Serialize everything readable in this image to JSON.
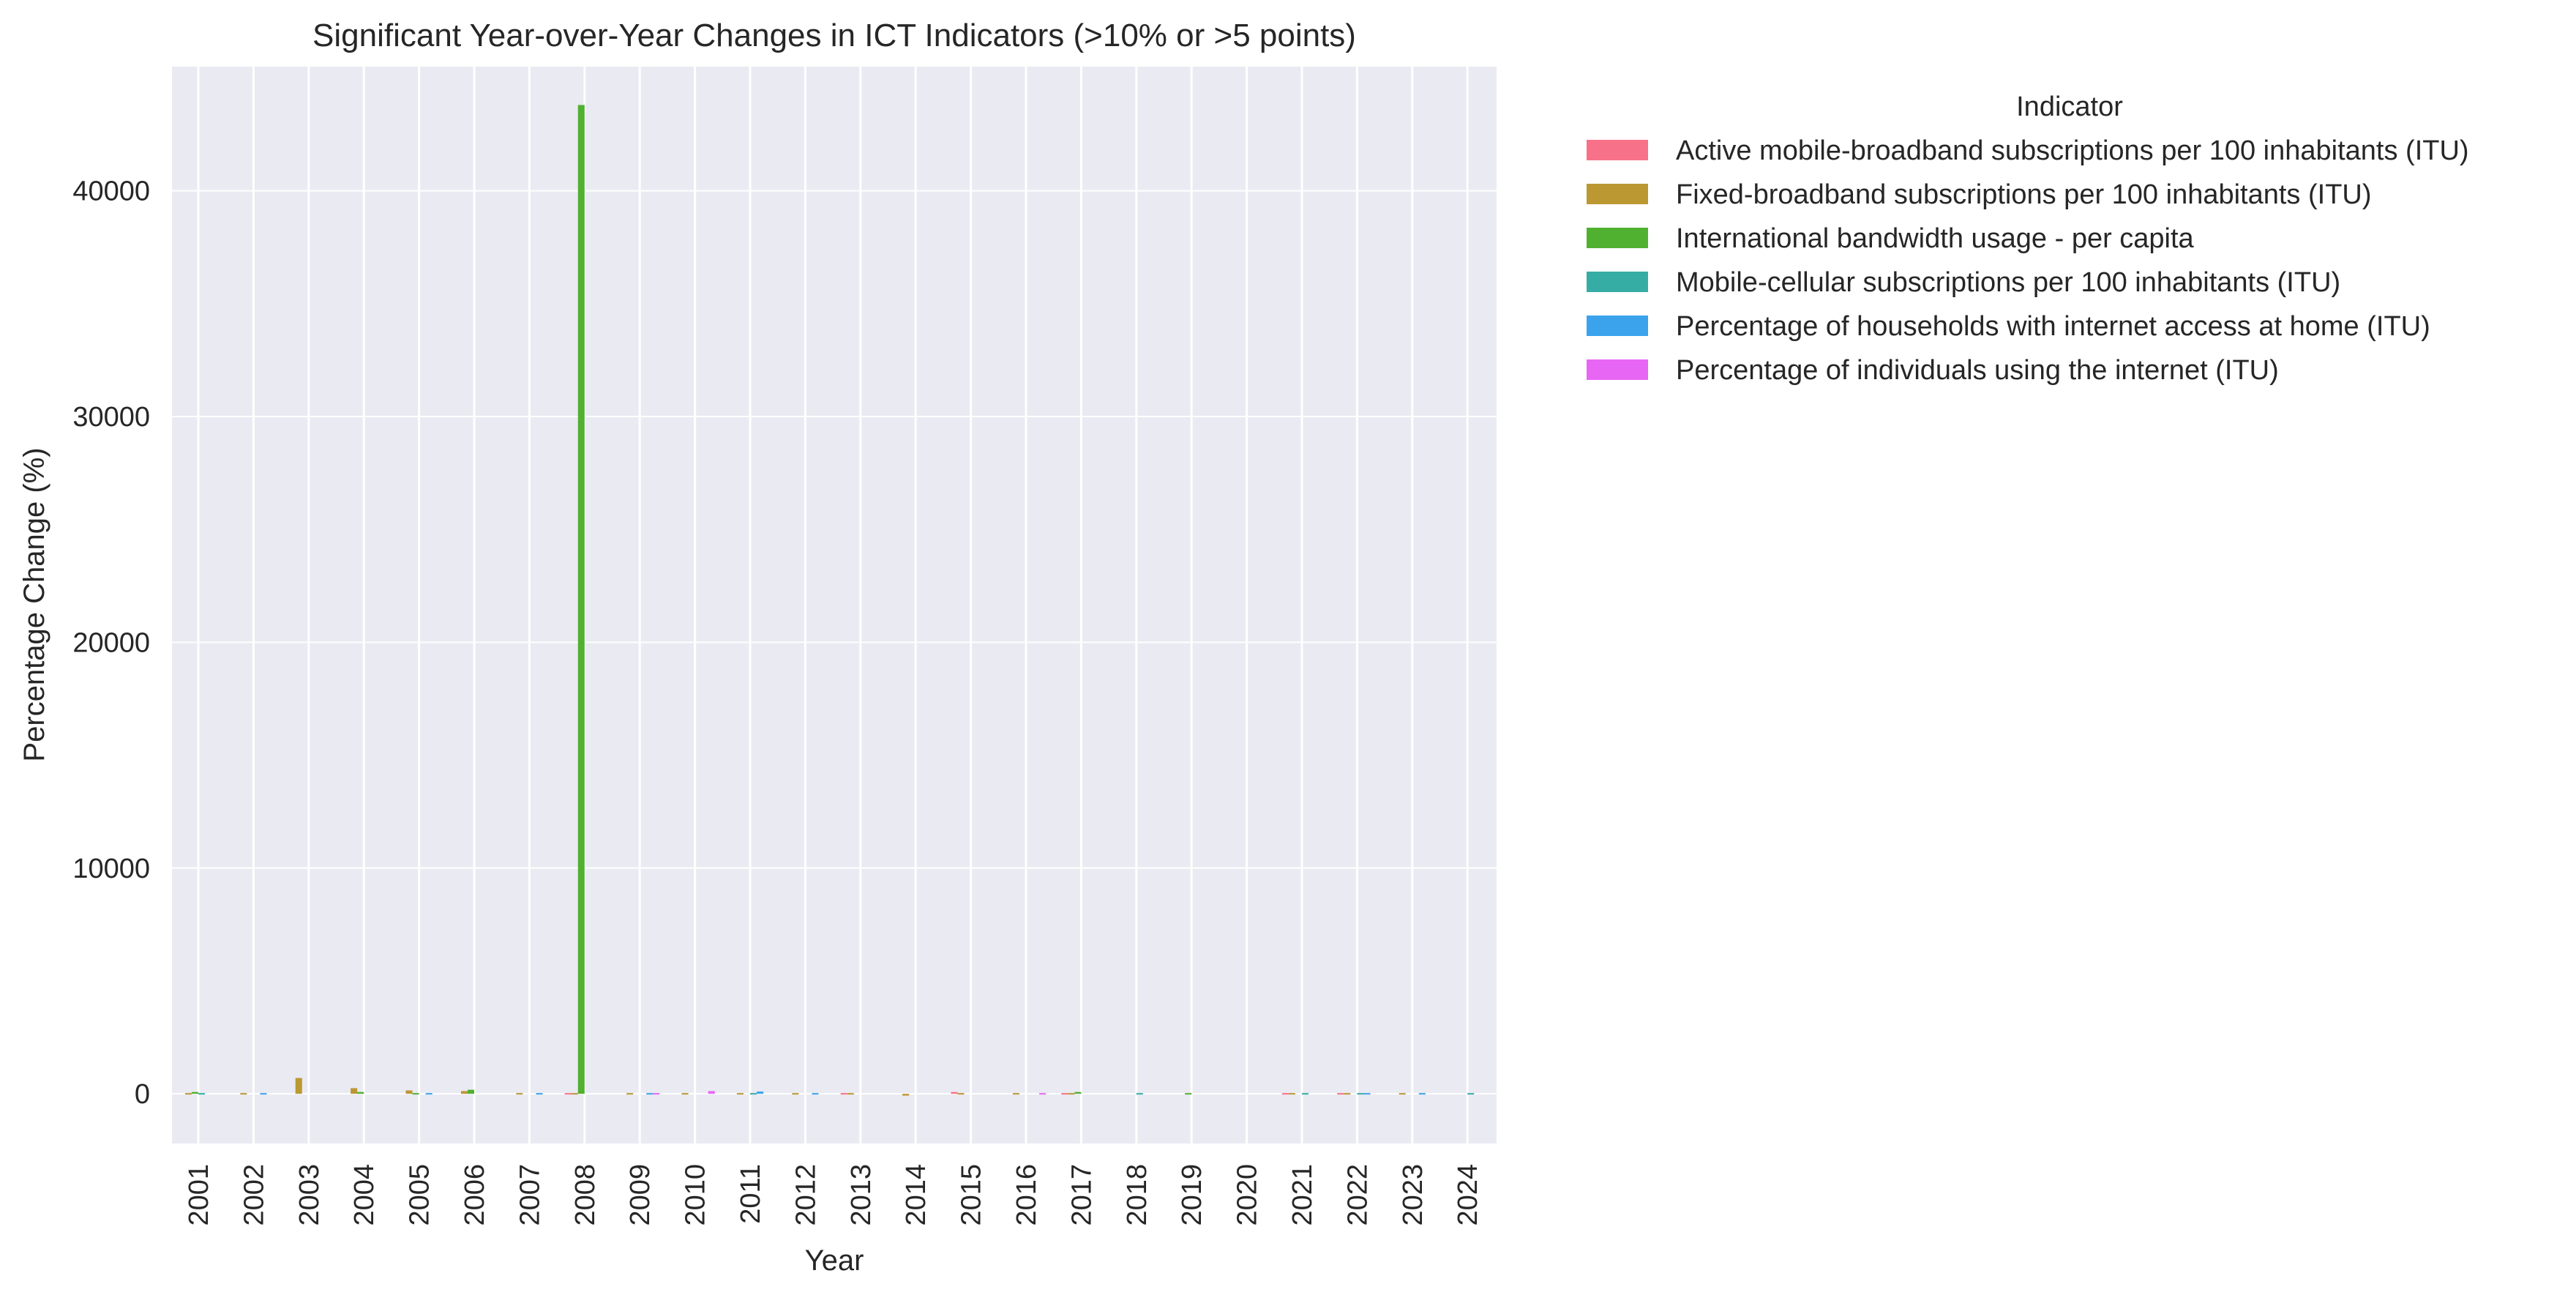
{
  "chart_data": {
    "type": "bar",
    "title": "Significant Year-over-Year Changes in ICT Indicators (>10% or >5 points)",
    "xlabel": "Year",
    "ylabel": "Percentage Change (%)",
    "ylim": [
      -2200,
      45500
    ],
    "yticks": [
      0,
      10000,
      20000,
      30000,
      40000
    ],
    "grid": true,
    "legend_title": "Indicator",
    "legend_position": "outside-right",
    "categories": [
      "2001",
      "2002",
      "2003",
      "2004",
      "2005",
      "2006",
      "2007",
      "2008",
      "2009",
      "2010",
      "2011",
      "2012",
      "2013",
      "2014",
      "2015",
      "2016",
      "2017",
      "2018",
      "2019",
      "2020",
      "2021",
      "2022",
      "2023",
      "2024"
    ],
    "series": [
      {
        "name": "Active mobile-broadband subscriptions per 100 inhabitants (ITU)",
        "color": "#f77189",
        "values": [
          null,
          null,
          null,
          null,
          null,
          null,
          null,
          25,
          null,
          null,
          null,
          null,
          20,
          null,
          80,
          null,
          15,
          null,
          null,
          null,
          30,
          15,
          null,
          null
        ]
      },
      {
        "name": "Fixed-broadband subscriptions per 100 inhabitants (ITU)",
        "color": "#bb9832",
        "values": [
          40,
          30,
          700,
          250,
          150,
          120,
          30,
          40,
          30,
          20,
          25,
          15,
          20,
          -80,
          30,
          35,
          15,
          null,
          null,
          null,
          60,
          25,
          20,
          null
        ]
      },
      {
        "name": "International bandwidth usage - per capita",
        "color": "#50b131",
        "values": [
          80,
          null,
          null,
          80,
          50,
          180,
          null,
          43800,
          null,
          null,
          null,
          null,
          null,
          null,
          null,
          null,
          80,
          null,
          60,
          null,
          null,
          null,
          null,
          null
        ]
      },
      {
        "name": "Mobile-cellular subscriptions per 100 inhabitants (ITU)",
        "color": "#36ada4",
        "values": [
          30,
          null,
          null,
          null,
          null,
          null,
          null,
          null,
          null,
          null,
          50,
          null,
          null,
          null,
          null,
          null,
          null,
          40,
          null,
          null,
          40,
          20,
          null,
          15
        ]
      },
      {
        "name": "Percentage of households with internet access at home (ITU)",
        "color": "#3ba3ec",
        "values": [
          null,
          40,
          null,
          null,
          30,
          null,
          60,
          null,
          60,
          null,
          100,
          30,
          null,
          null,
          null,
          null,
          null,
          null,
          null,
          null,
          null,
          50,
          30,
          null
        ]
      },
      {
        "name": "Percentage of individuals using the internet (ITU)",
        "color": "#e866f4",
        "values": [
          null,
          null,
          null,
          null,
          null,
          null,
          null,
          null,
          30,
          120,
          null,
          null,
          null,
          null,
          null,
          30,
          null,
          null,
          null,
          null,
          null,
          null,
          null,
          null
        ]
      }
    ]
  }
}
